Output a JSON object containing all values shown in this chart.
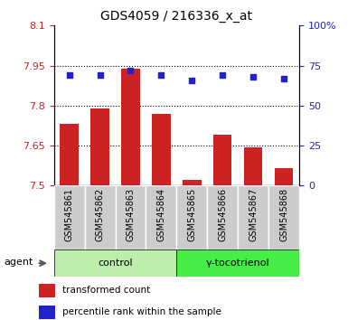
{
  "title": "GDS4059 / 216336_x_at",
  "samples": [
    "GSM545861",
    "GSM545862",
    "GSM545863",
    "GSM545864",
    "GSM545865",
    "GSM545866",
    "GSM545867",
    "GSM545868"
  ],
  "bar_values": [
    7.73,
    7.79,
    7.94,
    7.77,
    7.52,
    7.69,
    7.645,
    7.565
  ],
  "percentile_values": [
    69,
    69,
    72,
    69,
    66,
    69,
    68,
    67
  ],
  "ylim_left": [
    7.5,
    8.1
  ],
  "ylim_right": [
    0,
    100
  ],
  "yticks_left": [
    7.5,
    7.65,
    7.8,
    7.95,
    8.1
  ],
  "yticks_right": [
    0,
    25,
    50,
    75,
    100
  ],
  "ytick_labels_left": [
    "7.5",
    "7.65",
    "7.8",
    "7.95",
    "8.1"
  ],
  "ytick_labels_right": [
    "0",
    "25",
    "50",
    "75",
    "100%"
  ],
  "bar_color": "#cc2222",
  "dot_color": "#2222cc",
  "group_labels": [
    "control",
    "γ-tocotrienol"
  ],
  "group_color_control": "#bbeeaa",
  "group_color_treatment": "#44ee44",
  "bar_bottom": 7.5,
  "agent_label": "agent",
  "legend_bar_label": "transformed count",
  "legend_dot_label": "percentile rank within the sample",
  "grid_yticks": [
    7.65,
    7.8,
    7.95
  ],
  "xlabel_bg_color": "#cccccc",
  "background_color": "#ffffff"
}
